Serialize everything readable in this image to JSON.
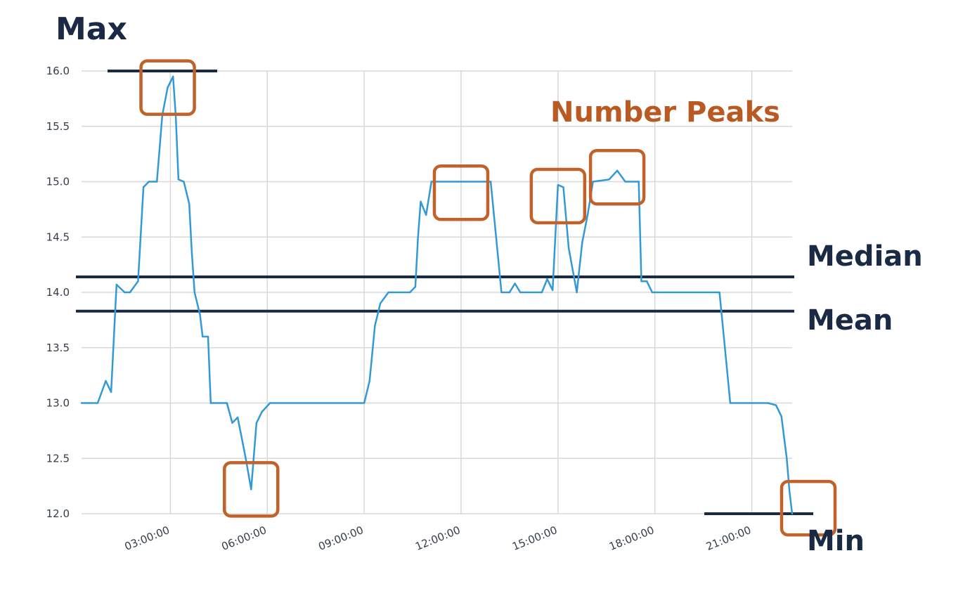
{
  "chart_data": {
    "type": "line",
    "title": "",
    "xlabel": "",
    "ylabel": "",
    "ylim": [
      12.0,
      16.0
    ],
    "y_ticks": [
      "12.0",
      "12.5",
      "13.0",
      "13.5",
      "14.0",
      "14.5",
      "15.0",
      "15.5",
      "16.0"
    ],
    "x_ticks": [
      "03:00:00",
      "06:00:00",
      "09:00:00",
      "12:00:00",
      "15:00:00",
      "18:00:00",
      "21:00:00"
    ],
    "grid": true,
    "colors": {
      "line": "#3399d6",
      "reference": "#1b2a44",
      "peak_box": "#c0622a",
      "grid": "#d8d8d8"
    },
    "series": [
      {
        "points": [
          [
            "00:15",
            13.0
          ],
          [
            "00:30",
            13.0
          ],
          [
            "00:45",
            13.0
          ],
          [
            "01:00",
            13.2
          ],
          [
            "01:10",
            13.1
          ],
          [
            "01:20",
            14.07
          ],
          [
            "01:35",
            14.0
          ],
          [
            "01:45",
            14.0
          ],
          [
            "02:00",
            14.1
          ],
          [
            "02:10",
            14.95
          ],
          [
            "02:20",
            15.0
          ],
          [
            "02:35",
            15.0
          ],
          [
            "02:45",
            15.6
          ],
          [
            "02:55",
            15.85
          ],
          [
            "03:05",
            15.95
          ],
          [
            "03:10",
            15.6
          ],
          [
            "03:15",
            15.02
          ],
          [
            "03:25",
            15.0
          ],
          [
            "03:35",
            14.8
          ],
          [
            "03:40",
            14.35
          ],
          [
            "03:45",
            14.0
          ],
          [
            "03:55",
            13.8
          ],
          [
            "04:00",
            13.6
          ],
          [
            "04:10",
            13.6
          ],
          [
            "04:15",
            13.0
          ],
          [
            "04:45",
            13.0
          ],
          [
            "04:55",
            12.82
          ],
          [
            "05:05",
            12.87
          ],
          [
            "05:10",
            12.75
          ],
          [
            "05:20",
            12.5
          ],
          [
            "05:30",
            12.22
          ],
          [
            "05:40",
            12.82
          ],
          [
            "05:50",
            12.92
          ],
          [
            "06:05",
            13.0
          ],
          [
            "09:00",
            13.0
          ],
          [
            "09:10",
            13.2
          ],
          [
            "09:20",
            13.7
          ],
          [
            "09:30",
            13.9
          ],
          [
            "09:45",
            14.0
          ],
          [
            "10:25",
            14.0
          ],
          [
            "10:35",
            14.05
          ],
          [
            "10:40",
            14.5
          ],
          [
            "10:45",
            14.82
          ],
          [
            "10:55",
            14.7
          ],
          [
            "11:05",
            15.0
          ],
          [
            "12:55",
            15.0
          ],
          [
            "13:05",
            14.5
          ],
          [
            "13:15",
            14.0
          ],
          [
            "13:30",
            14.0
          ],
          [
            "13:40",
            14.08
          ],
          [
            "13:50",
            14.0
          ],
          [
            "14:30",
            14.0
          ],
          [
            "14:40",
            14.12
          ],
          [
            "14:50",
            14.02
          ],
          [
            "15:00",
            14.97
          ],
          [
            "15:10",
            14.95
          ],
          [
            "15:20",
            14.4
          ],
          [
            "15:35",
            14.0
          ],
          [
            "15:45",
            14.45
          ],
          [
            "15:55",
            14.7
          ],
          [
            "16:05",
            15.0
          ],
          [
            "16:35",
            15.02
          ],
          [
            "16:50",
            15.1
          ],
          [
            "17:05",
            15.0
          ],
          [
            "17:30",
            15.0
          ],
          [
            "17:35",
            14.1
          ],
          [
            "17:45",
            14.1
          ],
          [
            "17:55",
            14.0
          ],
          [
            "20:00",
            14.0
          ],
          [
            "20:10",
            13.5
          ],
          [
            "20:20",
            13.0
          ],
          [
            "21:30",
            13.0
          ],
          [
            "21:45",
            12.98
          ],
          [
            "21:55",
            12.88
          ],
          [
            "22:05",
            12.5
          ],
          [
            "22:10",
            12.2
          ],
          [
            "22:15",
            12.0
          ]
        ]
      }
    ],
    "annotations": {
      "max": {
        "label": "Max",
        "value": 16.0
      },
      "min": {
        "label": "Min",
        "value": 12.0
      },
      "median": {
        "label": "Median",
        "value": 14.14
      },
      "mean": {
        "label": "Mean",
        "value": 13.83
      },
      "peaks": {
        "label": "Number Peaks",
        "marked": [
          [
            "02:55",
            15.85
          ],
          [
            "05:30",
            12.22
          ],
          [
            "12:00",
            14.9
          ],
          [
            "15:00",
            14.87
          ],
          [
            "16:50",
            15.04
          ],
          [
            "22:45",
            12.05
          ]
        ]
      }
    }
  }
}
